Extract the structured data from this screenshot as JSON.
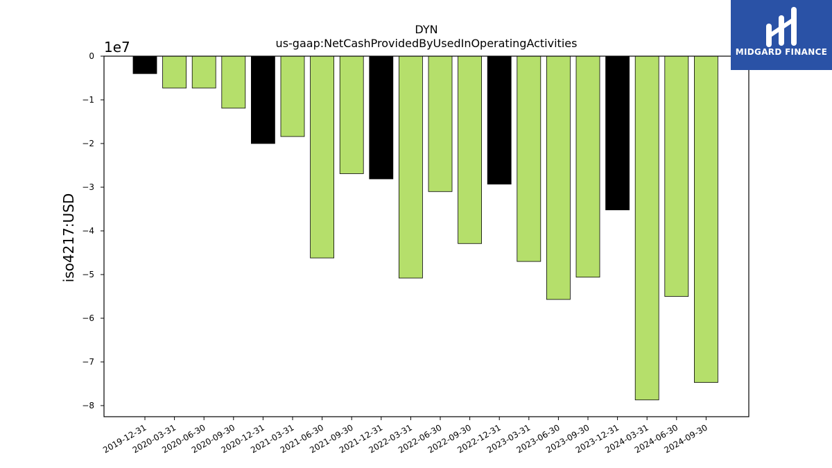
{
  "chart_data": {
    "type": "bar",
    "title": "DYN",
    "subtitle": "us-gaap:NetCashProvidedByUsedInOperatingActivities",
    "ylabel": "iso4217:USD",
    "xlabel": "",
    "y_multiplier": "1e7",
    "ylim": [
      -8.25,
      0
    ],
    "yticks": [
      0,
      -1,
      -2,
      -3,
      -4,
      -5,
      -6,
      -7,
      -8
    ],
    "ytick_labels": [
      "0",
      "−1",
      "−2",
      "−3",
      "−4",
      "−5",
      "−6",
      "−7",
      "−8"
    ],
    "categories": [
      "2019-12-31",
      "2020-03-31",
      "2020-06-30",
      "2020-09-30",
      "2020-12-31",
      "2021-03-31",
      "2021-06-30",
      "2021-09-30",
      "2021-12-31",
      "2022-03-31",
      "2022-06-30",
      "2022-09-30",
      "2022-12-31",
      "2023-03-31",
      "2023-06-30",
      "2023-09-30",
      "2023-12-31",
      "2024-03-31",
      "2024-06-30",
      "2024-09-30"
    ],
    "values": [
      -0.4,
      -0.73,
      -0.73,
      -1.19,
      -2.0,
      -1.84,
      -4.62,
      -2.69,
      -2.81,
      -5.08,
      -3.1,
      -4.29,
      -2.93,
      -4.7,
      -5.57,
      -5.06,
      -3.52,
      -7.87,
      -5.5,
      -7.47
    ],
    "bar_colors": [
      "#000000",
      "#b5df6b",
      "#b5df6b",
      "#b5df6b",
      "#000000",
      "#b5df6b",
      "#b5df6b",
      "#b5df6b",
      "#000000",
      "#b5df6b",
      "#b5df6b",
      "#b5df6b",
      "#000000",
      "#b5df6b",
      "#b5df6b",
      "#b5df6b",
      "#000000",
      "#b5df6b",
      "#b5df6b",
      "#b5df6b"
    ],
    "grid": false
  },
  "logo": {
    "text": "MIDGARD FINANCE",
    "color": "#2a52a6"
  }
}
